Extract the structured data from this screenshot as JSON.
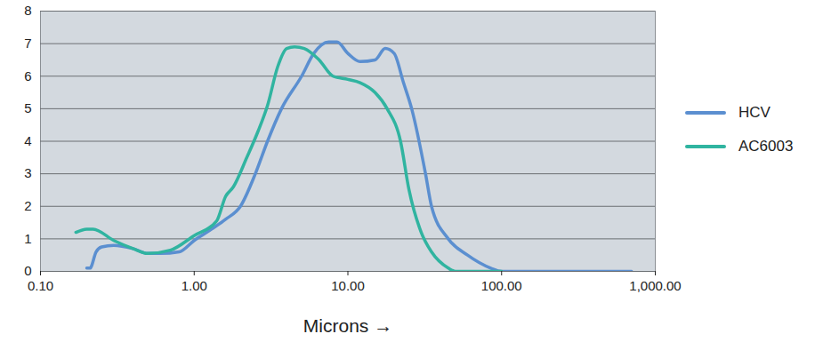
{
  "chart_data": {
    "type": "line",
    "x_label": "Microns",
    "log": "x",
    "grid": true,
    "legend": "right",
    "xlim": [
      0.1,
      1000
    ],
    "xticks": [
      {
        "value": 0.1,
        "label": "0.10"
      },
      {
        "value": 1,
        "label": "1.00"
      },
      {
        "value": 10,
        "label": "10.00"
      },
      {
        "value": 100,
        "label": "100.00"
      },
      {
        "value": 1000,
        "label": "1,000.00"
      }
    ],
    "ylim": [
      0,
      8
    ],
    "yticks": [
      0,
      1,
      2,
      3,
      4,
      5,
      6,
      7,
      8
    ],
    "series": [
      {
        "name": "HCV",
        "color": "#5b8fd0",
        "x": [
          0.2,
          0.21,
          0.23,
          0.25,
          0.3,
          0.4,
          0.5,
          0.6,
          0.8,
          1.0,
          1.3,
          1.6,
          2.0,
          2.5,
          3.0,
          3.7,
          5.0,
          6.0,
          7.5,
          8.5,
          10,
          12,
          15,
          17.5,
          20,
          23,
          26,
          32,
          35,
          45,
          60,
          85,
          100,
          700
        ],
        "values": [
          0.1,
          0.1,
          0.6,
          0.75,
          0.8,
          0.7,
          0.55,
          0.55,
          0.6,
          0.95,
          1.3,
          1.6,
          2.0,
          3.0,
          4.0,
          5.0,
          6.0,
          6.7,
          7.05,
          7.05,
          6.7,
          6.45,
          6.5,
          6.85,
          6.7,
          5.8,
          5.0,
          3.0,
          2.0,
          1.0,
          0.5,
          0.1,
          0,
          0
        ]
      },
      {
        "name": "AC6003",
        "color": "#30b4a0",
        "x": [
          0.17,
          0.2,
          0.22,
          0.3,
          0.4,
          0.5,
          0.7,
          1.0,
          1.4,
          1.6,
          1.8,
          2.2,
          2.6,
          3.0,
          3.5,
          4.0,
          4.5,
          5.2,
          6.5,
          8.0,
          10,
          12,
          15,
          18,
          22,
          25,
          30,
          35,
          45,
          50,
          100
        ],
        "values": [
          1.2,
          1.3,
          1.3,
          0.95,
          0.7,
          0.55,
          0.65,
          1.1,
          1.55,
          2.3,
          2.6,
          3.5,
          4.3,
          5.1,
          6.3,
          6.85,
          6.9,
          6.85,
          6.5,
          6.0,
          5.9,
          5.8,
          5.5,
          5.0,
          4.0,
          2.5,
          1.2,
          0.6,
          0.1,
          0,
          0
        ]
      }
    ]
  }
}
